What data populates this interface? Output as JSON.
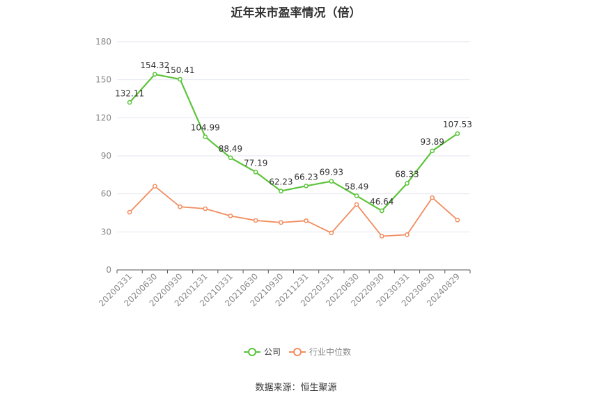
{
  "chart_data": {
    "type": "line",
    "title": "近年来市盈率情况（倍）",
    "categories": [
      "20200331",
      "20200630",
      "20200930",
      "20201231",
      "20210331",
      "20210630",
      "20210930",
      "20211231",
      "20220331",
      "20220630",
      "20220930",
      "20230331",
      "20230630",
      "20240829"
    ],
    "series": [
      {
        "name": "公司",
        "color": "#5cc43a",
        "values": [
          132.11,
          154.32,
          150.41,
          104.99,
          88.49,
          77.19,
          62.23,
          66.23,
          69.93,
          58.49,
          46.64,
          68.33,
          93.89,
          107.53
        ],
        "labels": [
          "132.11",
          "154.32",
          "150.41",
          "104.99",
          "88.49",
          "77.19",
          "62.23",
          "66.23",
          "69.93",
          "58.49",
          "46.64",
          "68.33",
          "93.89",
          "107.53"
        ]
      },
      {
        "name": "行业中位数",
        "color": "#f28c5e",
        "values": [
          45.5,
          66.0,
          49.8,
          48.3,
          42.6,
          39.0,
          37.4,
          38.8,
          29.2,
          51.6,
          26.6,
          27.8,
          57.0,
          39.4
        ]
      }
    ],
    "ylim": [
      0,
      180
    ],
    "yticks": [
      "0",
      "30",
      "60",
      "90",
      "120",
      "150",
      "180"
    ],
    "grid": true,
    "legend_position": "bottom"
  },
  "source_text": "数据来源：恒生聚源"
}
